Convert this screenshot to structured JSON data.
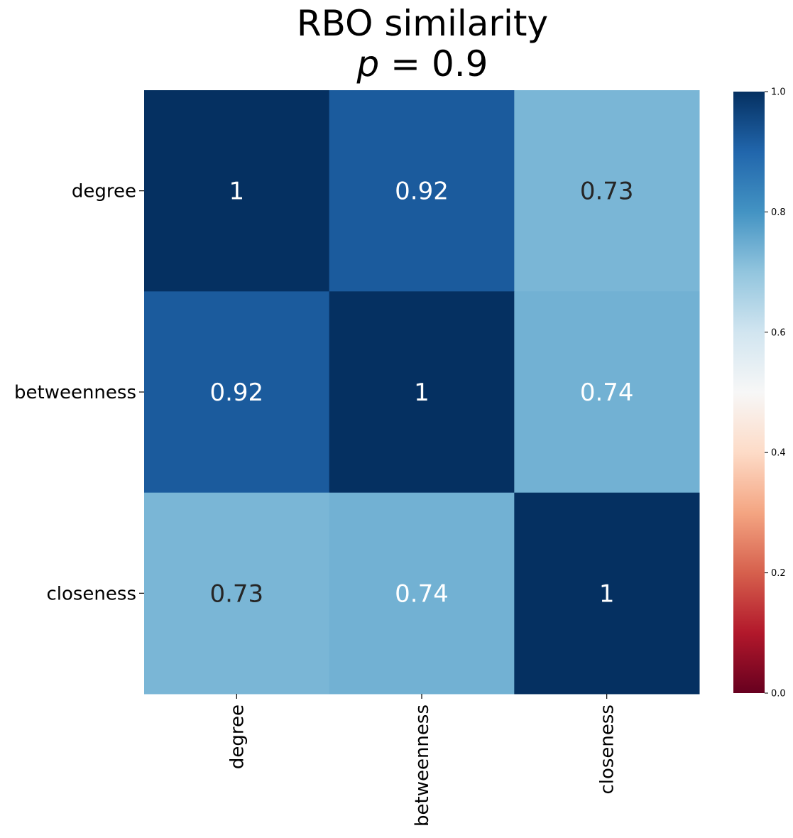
{
  "chart_data": {
    "type": "heatmap",
    "title": "RBO similarity",
    "subtitle": {
      "var": "p",
      "op": " = ",
      "val": "0.9"
    },
    "rows": [
      "degree",
      "betweenness",
      "closeness"
    ],
    "columns": [
      "degree",
      "betweenness",
      "closeness"
    ],
    "values": [
      [
        1,
        0.92,
        0.73
      ],
      [
        0.92,
        1,
        0.74
      ],
      [
        0.73,
        0.74,
        1
      ]
    ],
    "annotations": [
      [
        "1",
        "0.92",
        "0.73"
      ],
      [
        "0.92",
        "1",
        "0.74"
      ],
      [
        "0.73",
        "0.74",
        "1"
      ]
    ],
    "colorbar": {
      "colormap": "RdBu",
      "vmin": 0.0,
      "vmax": 1.0,
      "ticks": [
        "0.0",
        "0.2",
        "0.4",
        "0.6",
        "0.8",
        "1.0"
      ]
    }
  }
}
